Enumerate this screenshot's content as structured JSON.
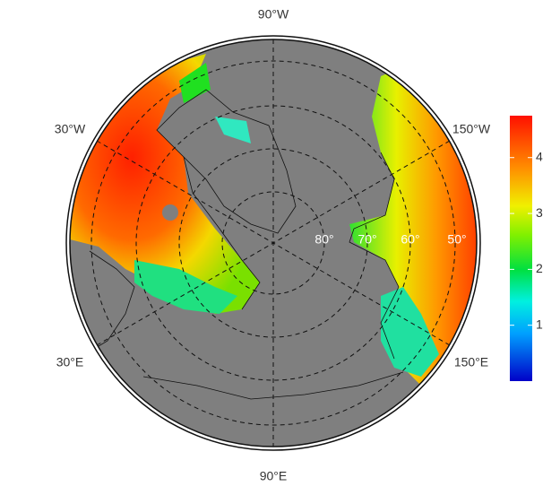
{
  "map": {
    "meridian_labels": [
      "90°W",
      "30°W",
      "150°W",
      "30°E",
      "150°E",
      "90°E"
    ],
    "parallel_labels": [
      "80°",
      "70°",
      "60°",
      "50°"
    ],
    "colorbar": {
      "lim": [
        0,
        4.75
      ],
      "ticks": [
        1,
        2,
        3,
        4
      ]
    }
  }
}
